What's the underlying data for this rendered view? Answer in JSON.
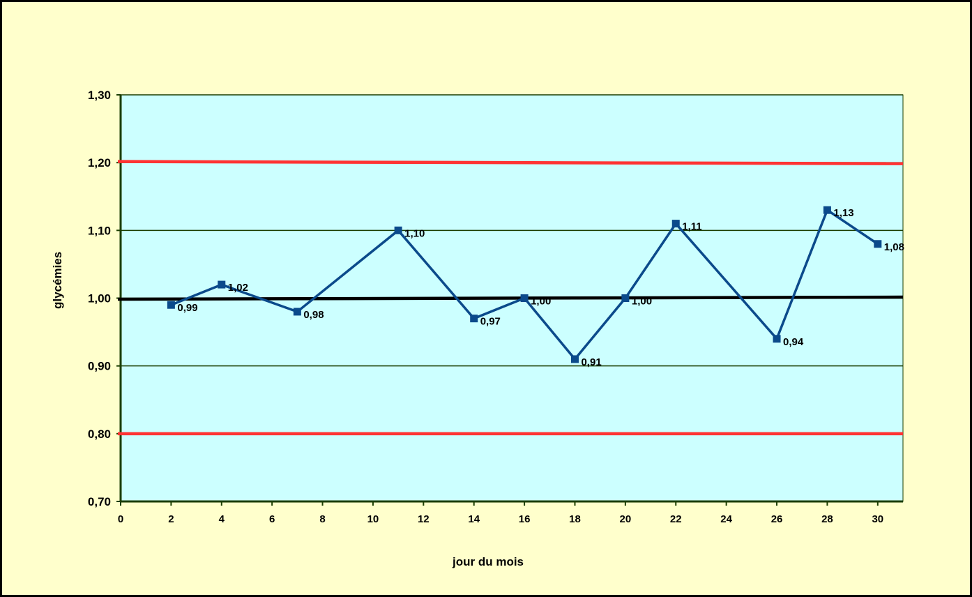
{
  "chart_data": {
    "type": "line",
    "xlabel": "jour du mois",
    "ylabel": "glycémies",
    "xlim": [
      0,
      31
    ],
    "ylim": [
      0.7,
      1.3
    ],
    "x_ticks": [
      "0",
      "2",
      "4",
      "6",
      "8",
      "10",
      "12",
      "14",
      "16",
      "18",
      "20",
      "22",
      "24",
      "26",
      "28",
      "30"
    ],
    "y_ticks": [
      "0,70",
      "0,80",
      "0,90",
      "1,00",
      "1,10",
      "1,20",
      "1,30"
    ],
    "series": [
      {
        "color": "#0b4a8b",
        "points": [
          {
            "x": 2,
            "y": 0.99,
            "label": "0,99"
          },
          {
            "x": 4,
            "y": 1.02,
            "label": "1,02"
          },
          {
            "x": 7,
            "y": 0.98,
            "label": "0,98"
          },
          {
            "x": 11,
            "y": 1.1,
            "label": "1,10"
          },
          {
            "x": 14,
            "y": 0.97,
            "label": "0,97"
          },
          {
            "x": 16,
            "y": 1.0,
            "label": "1,00"
          },
          {
            "x": 18,
            "y": 0.91,
            "label": "0,91"
          },
          {
            "x": 20,
            "y": 1.0,
            "label": "1,00"
          },
          {
            "x": 22,
            "y": 1.11,
            "label": "1,11"
          },
          {
            "x": 26,
            "y": 0.94,
            "label": "0,94"
          },
          {
            "x": 28,
            "y": 1.13,
            "label": "1,13"
          },
          {
            "x": 30,
            "y": 1.08,
            "label": "1,08"
          }
        ]
      }
    ],
    "reference_lines": [
      {
        "y": 1.2,
        "color": "#ff3333"
      },
      {
        "y": 0.8,
        "color": "#ff3333"
      },
      {
        "y": 1.0,
        "color": "#000000"
      }
    ],
    "grid": true,
    "plot_background": "#ccffff",
    "chart_background": "#ffffcc",
    "gridline_color": "#1a3d00"
  }
}
